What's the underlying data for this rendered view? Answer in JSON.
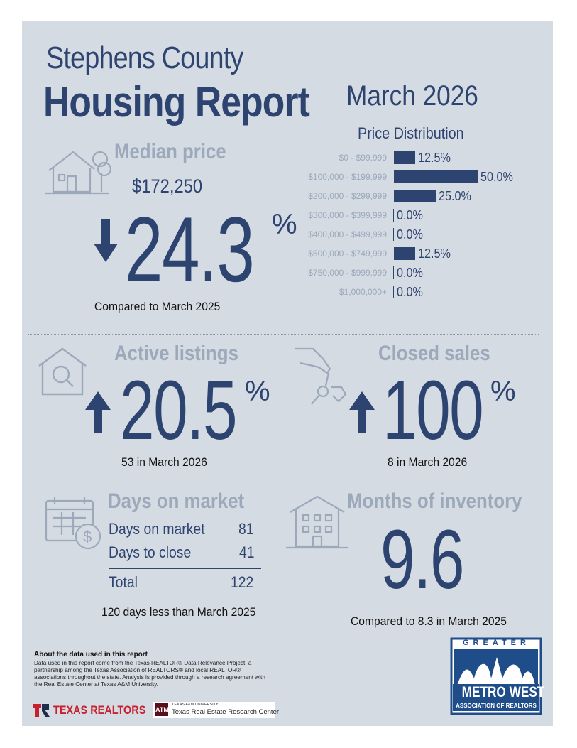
{
  "header": {
    "county": "Stephens County",
    "report": "Housing Report",
    "month": "March 2026"
  },
  "units": {
    "percent": "%"
  },
  "median": {
    "heading": "Median price",
    "price": "$172,250",
    "change": "24.3",
    "direction": "down",
    "compare": "Compared to March 2025"
  },
  "price_distribution": {
    "title": "Price Distribution"
  },
  "chart_data": {
    "type": "bar",
    "orientation": "horizontal",
    "title": "Price Distribution",
    "categories": [
      "$0 - $99,999",
      "$100,000 - $199,999",
      "$200,000 - $299,999",
      "$300,000 - $399,999",
      "$400,000 - $499,999",
      "$500,000 - $749,999",
      "$750,000 - $999,999",
      "$1,000,000+"
    ],
    "values": [
      12.5,
      50.0,
      25.0,
      0.0,
      0.0,
      12.5,
      0.0,
      0.0
    ],
    "labels": [
      "12.5%",
      "50.0%",
      "25.0%",
      "0.0%",
      "0.0%",
      "12.5%",
      "0.0%",
      "0.0%"
    ],
    "xlim": [
      0,
      50
    ]
  },
  "active": {
    "heading": "Active listings",
    "change": "20.5",
    "direction": "up",
    "count_text": "53 in March 2026"
  },
  "closed": {
    "heading": "Closed sales",
    "change": "100",
    "direction": "up",
    "count_text": "8 in March 2026"
  },
  "dom": {
    "heading": "Days on market",
    "rows": [
      {
        "label": "Days on market",
        "value": "81"
      },
      {
        "label": "Days to close",
        "value": "41"
      }
    ],
    "total_label": "Total",
    "total_value": "122",
    "compare": "120 days less than March 2025"
  },
  "moi": {
    "heading": "Months of inventory",
    "value": "9.6",
    "compare": "Compared to 8.3 in March 2025"
  },
  "footer": {
    "heading": "About the data used in this report",
    "text": "Data used in this report come from the Texas REALTOR® Data Relevance Project, a partnership among the Texas Association of REALTORS® and local REALTOR® associations throughout the state. Analysis is provided through a research agreement with the Real Estate Center at Texas A&M University.",
    "logo1": "TEXAS REALTORS",
    "logo2_mark": "ATM",
    "logo2_small": "TEXAS A&M UNIVERSITY",
    "logo2_main": "Texas Real Estate Research Center",
    "logo3_top": "GREATER",
    "logo3_main": "METRO WEST",
    "logo3_bottom": "ASSOCIATION OF REALTORS"
  }
}
